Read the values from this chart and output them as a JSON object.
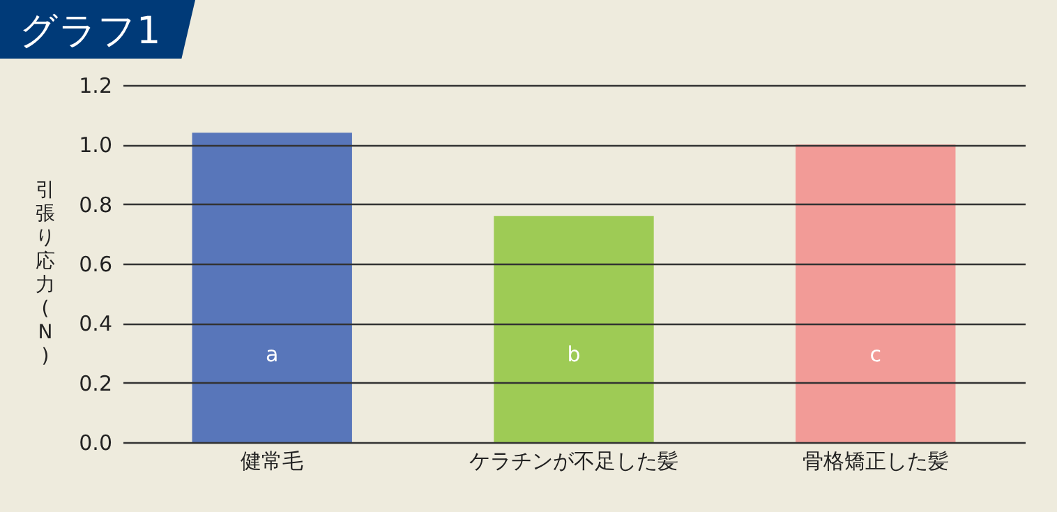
{
  "chart_data": {
    "type": "bar",
    "title": "グラフ1",
    "ylabel": "引張り応力(N)",
    "categories": [
      "健常毛",
      "ケラチンが不足した髪",
      "骨格矯正した髪"
    ],
    "values": [
      1.04,
      0.76,
      1.0
    ],
    "colors": [
      "#5876ba",
      "#9ecb55",
      "#f29b97"
    ],
    "ylim": [
      0,
      1.2
    ],
    "yticks": [
      {
        "value": 0,
        "label": "0.0"
      },
      {
        "value": 0.2,
        "label": "0.2"
      },
      {
        "value": 0.4,
        "label": "0.4"
      },
      {
        "value": 0.6,
        "label": "0.6"
      },
      {
        "value": 0.8,
        "label": "0.8"
      },
      {
        "value": 1,
        "label": "1.0"
      },
      {
        "value": 1.2,
        "label": "1.2"
      }
    ],
    "grid": "y",
    "annotations": [
      "a",
      "b",
      "c"
    ]
  }
}
